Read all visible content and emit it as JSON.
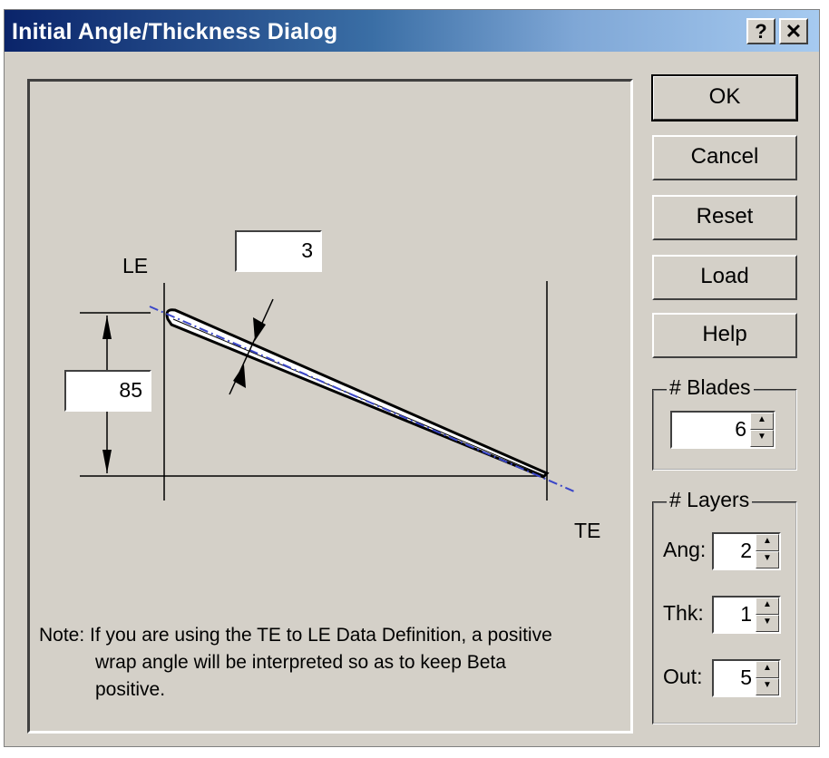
{
  "window": {
    "title": "Initial Angle/Thickness Dialog",
    "help_glyph": "?",
    "close_glyph": "✕"
  },
  "diagram": {
    "le_label": "LE",
    "te_label": "TE",
    "thickness_value": "3",
    "angle_value": "85",
    "note_line1": "Note: If you are using the TE to LE Data Definition, a positive",
    "note_line2": "wrap angle will be interpreted so as to keep Beta",
    "note_line3": "positive."
  },
  "buttons": {
    "ok": "OK",
    "cancel": "Cancel",
    "reset": "Reset",
    "load": "Load",
    "help": "Help"
  },
  "blades": {
    "title": "# Blades",
    "value": "6"
  },
  "layers": {
    "title": "# Layers",
    "ang_label": "Ang:",
    "ang_value": "2",
    "thk_label": "Thk:",
    "thk_value": "1",
    "out_label": "Out:",
    "out_value": "5"
  },
  "colors": {
    "centerline": "#3a46c8",
    "face": "#d4d0c8"
  }
}
